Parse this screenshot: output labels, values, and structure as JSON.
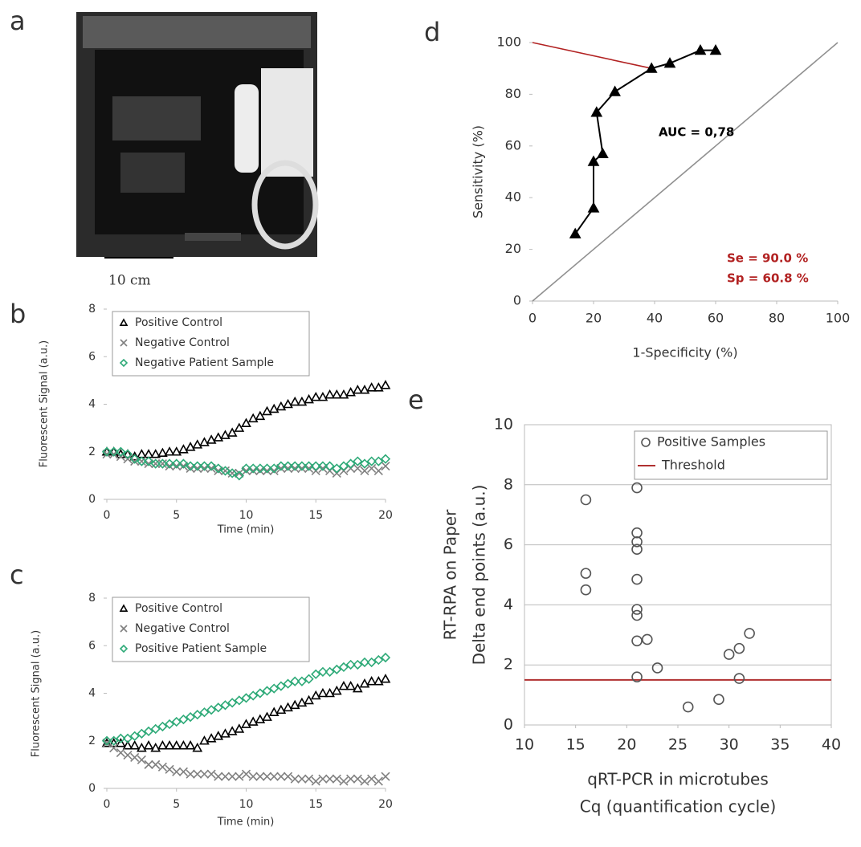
{
  "photo": {
    "panel": "a",
    "scale_label": "10 cm"
  },
  "chart_data": [
    {
      "panel": "b",
      "type": "scatter",
      "xlabel": "Time (min)",
      "ylabel": "Fluorescent Signal (a.u.)",
      "x": [
        0,
        0.5,
        1,
        1.5,
        2,
        2.5,
        3,
        3.5,
        4,
        4.5,
        5,
        5.5,
        6,
        6.5,
        7,
        7.5,
        8,
        8.5,
        9,
        9.5,
        10,
        10.5,
        11,
        11.5,
        12,
        12.5,
        13,
        13.5,
        14,
        14.5,
        15,
        15.5,
        16,
        16.5,
        17,
        17.5,
        18,
        18.5,
        19,
        19.5,
        20
      ],
      "series": [
        {
          "name": "Positive Control",
          "color": "#000000",
          "marker": "triangle",
          "values": [
            2.0,
            2.0,
            1.9,
            1.9,
            1.8,
            1.9,
            1.9,
            1.9,
            1.95,
            2.0,
            2.0,
            2.1,
            2.2,
            2.3,
            2.4,
            2.5,
            2.6,
            2.7,
            2.8,
            3.0,
            3.2,
            3.4,
            3.5,
            3.7,
            3.8,
            3.9,
            4.0,
            4.1,
            4.1,
            4.2,
            4.3,
            4.3,
            4.4,
            4.4,
            4.4,
            4.5,
            4.6,
            4.6,
            4.7,
            4.7,
            4.8
          ]
        },
        {
          "name": "Negative Control",
          "color": "#808080",
          "marker": "x",
          "values": [
            1.9,
            1.9,
            1.8,
            1.7,
            1.6,
            1.6,
            1.5,
            1.5,
            1.5,
            1.4,
            1.4,
            1.4,
            1.3,
            1.3,
            1.3,
            1.3,
            1.2,
            1.2,
            1.1,
            1.1,
            1.2,
            1.2,
            1.2,
            1.2,
            1.2,
            1.3,
            1.3,
            1.3,
            1.3,
            1.3,
            1.2,
            1.3,
            1.2,
            1.1,
            1.2,
            1.3,
            1.3,
            1.2,
            1.3,
            1.2,
            1.4
          ]
        },
        {
          "name": "Negative Patient Sample",
          "color": "#2eaa78",
          "marker": "diamond",
          "values": [
            2.0,
            2.0,
            2.0,
            1.9,
            1.7,
            1.6,
            1.6,
            1.5,
            1.5,
            1.5,
            1.5,
            1.5,
            1.4,
            1.4,
            1.4,
            1.4,
            1.3,
            1.2,
            1.1,
            1.0,
            1.3,
            1.3,
            1.3,
            1.3,
            1.3,
            1.4,
            1.4,
            1.4,
            1.4,
            1.4,
            1.4,
            1.4,
            1.4,
            1.3,
            1.4,
            1.5,
            1.6,
            1.5,
            1.6,
            1.6,
            1.7
          ]
        }
      ],
      "xlim": [
        0,
        20
      ],
      "xticks": [
        0,
        5,
        10,
        15,
        20
      ],
      "ylim": [
        0,
        8
      ],
      "yticks": [
        0,
        2,
        4,
        6,
        8
      ],
      "legend": "upper left"
    },
    {
      "panel": "c",
      "type": "scatter",
      "xlabel": "Time (min)",
      "ylabel": "Fluorescent Signal (a.u.)",
      "x": [
        0,
        0.5,
        1,
        1.5,
        2,
        2.5,
        3,
        3.5,
        4,
        4.5,
        5,
        5.5,
        6,
        6.5,
        7,
        7.5,
        8,
        8.5,
        9,
        9.5,
        10,
        10.5,
        11,
        11.5,
        12,
        12.5,
        13,
        13.5,
        14,
        14.5,
        15,
        15.5,
        16,
        16.5,
        17,
        17.5,
        18,
        18.5,
        19,
        19.5,
        20
      ],
      "series": [
        {
          "name": "Positive Control",
          "color": "#000000",
          "marker": "triangle",
          "values": [
            1.9,
            1.9,
            1.9,
            1.8,
            1.8,
            1.7,
            1.8,
            1.7,
            1.8,
            1.8,
            1.8,
            1.8,
            1.8,
            1.7,
            2.0,
            2.1,
            2.2,
            2.3,
            2.4,
            2.5,
            2.7,
            2.8,
            2.9,
            3.0,
            3.2,
            3.3,
            3.4,
            3.5,
            3.6,
            3.7,
            3.9,
            4.0,
            4.0,
            4.1,
            4.3,
            4.3,
            4.2,
            4.4,
            4.5,
            4.5,
            4.6
          ]
        },
        {
          "name": "Negative Control",
          "color": "#808080",
          "marker": "x",
          "values": [
            1.9,
            1.7,
            1.5,
            1.4,
            1.3,
            1.2,
            1.0,
            1.0,
            0.9,
            0.8,
            0.7,
            0.7,
            0.6,
            0.6,
            0.6,
            0.6,
            0.5,
            0.5,
            0.5,
            0.5,
            0.6,
            0.5,
            0.5,
            0.5,
            0.5,
            0.5,
            0.5,
            0.4,
            0.4,
            0.4,
            0.3,
            0.4,
            0.4,
            0.4,
            0.3,
            0.4,
            0.4,
            0.3,
            0.4,
            0.3,
            0.5
          ]
        },
        {
          "name": "Positive Patient Sample",
          "color": "#2eaa78",
          "marker": "diamond",
          "values": [
            2.0,
            2.0,
            2.1,
            2.1,
            2.2,
            2.3,
            2.4,
            2.5,
            2.6,
            2.7,
            2.8,
            2.9,
            3.0,
            3.1,
            3.2,
            3.3,
            3.4,
            3.5,
            3.6,
            3.7,
            3.8,
            3.9,
            4.0,
            4.1,
            4.2,
            4.3,
            4.4,
            4.5,
            4.5,
            4.6,
            4.8,
            4.9,
            4.9,
            5.0,
            5.1,
            5.2,
            5.2,
            5.3,
            5.3,
            5.4,
            5.5
          ]
        }
      ],
      "xlim": [
        0,
        20
      ],
      "xticks": [
        0,
        5,
        10,
        15,
        20
      ],
      "ylim": [
        0,
        8
      ],
      "yticks": [
        0,
        2,
        4,
        6,
        8
      ],
      "legend": "upper left"
    },
    {
      "panel": "d",
      "type": "line",
      "xlabel": "1-Specificity (%)",
      "ylabel": "Sensitivity (%)",
      "series": [
        {
          "color": "#000000",
          "marker": "triangle-filled",
          "x": [
            14,
            20,
            20,
            23,
            21,
            27,
            39,
            45,
            55,
            60
          ],
          "y": [
            26,
            36,
            54,
            57,
            73,
            81,
            90,
            92,
            97,
            97
          ]
        }
      ],
      "reference_lines": [
        {
          "color": "#b22222",
          "x": [
            0,
            39
          ],
          "y": [
            100,
            90
          ]
        },
        {
          "color": "#909090",
          "x": [
            0,
            100
          ],
          "y": [
            0,
            100
          ]
        }
      ],
      "annotations": [
        {
          "text": "AUC = 0,78",
          "color": "#000000"
        },
        {
          "text": "Se = 90.0 %",
          "color": "#b22222"
        },
        {
          "text": "Sp = 60.8 %",
          "color": "#b22222"
        }
      ],
      "xlim": [
        0,
        100
      ],
      "xticks": [
        0,
        20,
        40,
        60,
        80,
        100
      ],
      "ylim": [
        0,
        100
      ],
      "yticks": [
        0,
        20,
        40,
        60,
        80,
        100
      ]
    },
    {
      "panel": "e",
      "type": "scatter",
      "xlabel": [
        "qRT-PCR in microtubes",
        "Cq (quantification cycle)"
      ],
      "ylabel": [
        "RT-RPA on Paper",
        "Delta end points (a.u.)"
      ],
      "series": [
        {
          "name": "Positive Samples",
          "color": "#555555",
          "marker": "circle",
          "x": [
            16,
            16,
            16,
            21,
            21,
            21,
            21,
            21,
            21,
            21,
            21,
            22,
            21,
            23,
            26,
            29,
            30,
            31,
            32,
            31
          ],
          "y": [
            7.5,
            5.05,
            4.5,
            7.9,
            6.4,
            6.1,
            5.85,
            4.85,
            3.85,
            3.65,
            2.8,
            2.85,
            1.6,
            1.9,
            0.6,
            0.85,
            2.35,
            2.55,
            3.05,
            1.55
          ]
        }
      ],
      "hlines": [
        {
          "name": "Threshold",
          "color": "#b03030",
          "y": 1.5
        }
      ],
      "xlim": [
        10,
        40
      ],
      "xticks": [
        10,
        15,
        20,
        25,
        30,
        35,
        40
      ],
      "ylim": [
        0,
        10
      ],
      "yticks": [
        0,
        2,
        4,
        6,
        8,
        10
      ],
      "grid": true,
      "legend": "upper right"
    }
  ]
}
